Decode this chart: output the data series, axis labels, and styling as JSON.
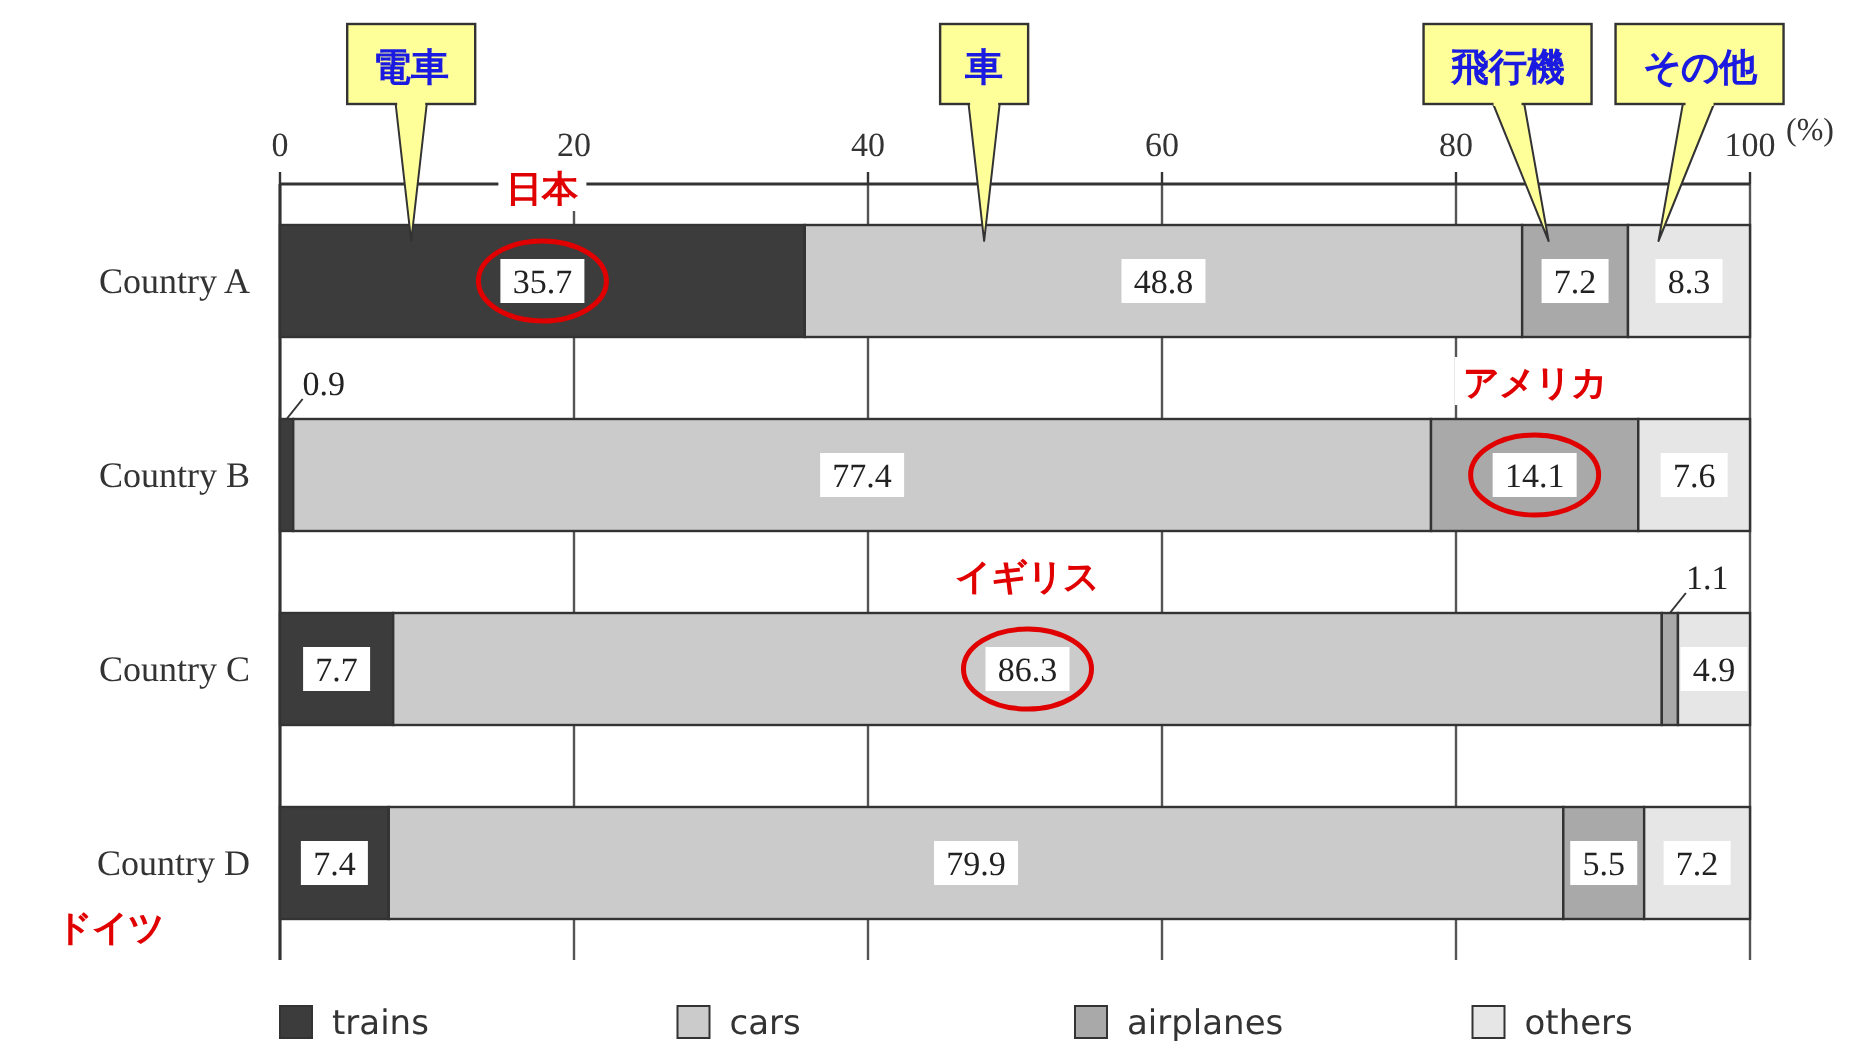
{
  "chart_data": {
    "type": "bar",
    "orientation": "horizontal",
    "stacked": true,
    "categories": [
      "Country A",
      "Country B",
      "Country C",
      "Country D"
    ],
    "series": [
      {
        "name": "trains",
        "color": "#3c3c3c",
        "values": [
          35.7,
          0.9,
          7.7,
          7.4
        ]
      },
      {
        "name": "cars",
        "color": "#cbcbcb",
        "values": [
          48.8,
          77.4,
          86.3,
          79.9
        ]
      },
      {
        "name": "airplanes",
        "color": "#a9a9a9",
        "values": [
          7.2,
          14.1,
          1.1,
          5.5
        ]
      },
      {
        "name": "others",
        "color": "#e6e6e6",
        "values": [
          8.3,
          7.6,
          4.9,
          7.2
        ]
      }
    ],
    "xlim": [
      0,
      100
    ],
    "xticks": [
      0,
      20,
      40,
      60,
      80,
      100
    ],
    "xlabel": "(%)",
    "grid": "x",
    "data_labels": true,
    "legend": "bottom",
    "annotations": [
      "電車",
      "車",
      "飛行機",
      "その他",
      {
        "text": "日本",
        "x": 17.85,
        "y": "Country A"
      },
      {
        "text": "アメリカ",
        "x": 85.35,
        "y": "Country B"
      },
      {
        "text": "イギリス",
        "x": 50.85,
        "y": "Country C"
      },
      "ドイツ"
    ]
  }
}
